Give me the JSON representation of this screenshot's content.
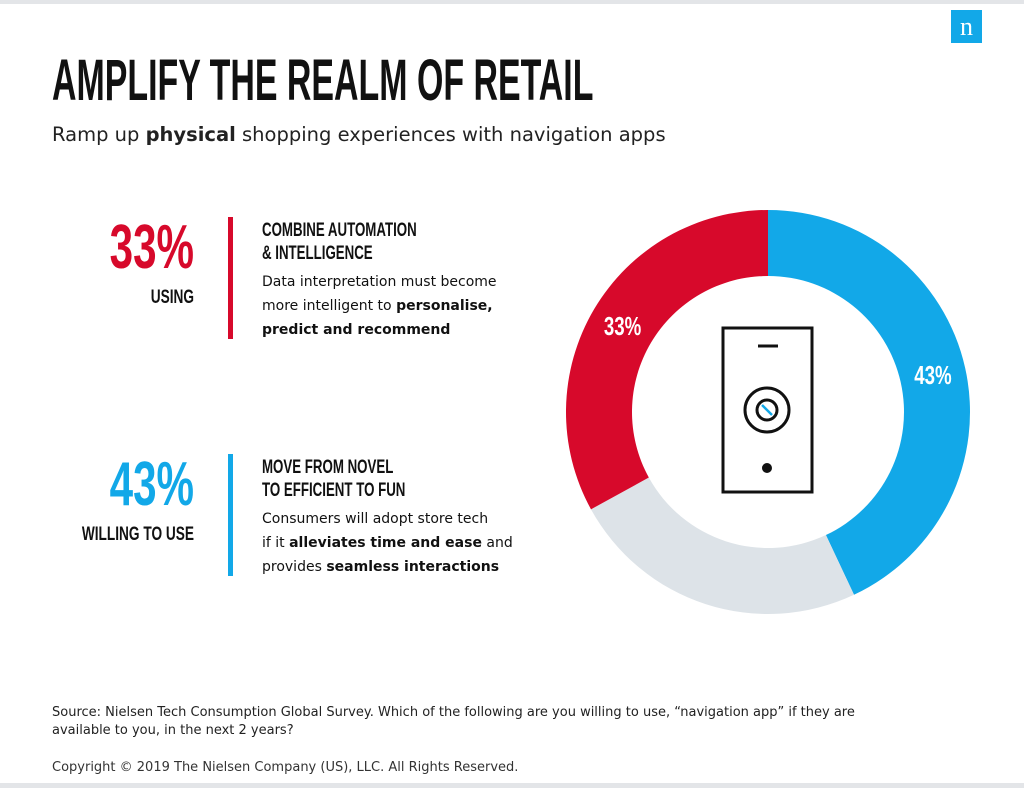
{
  "logo": "n",
  "title": "AMPLIFY THE REALM OF RETAIL",
  "subtitle": [
    {
      "text": "Ramp up "
    },
    {
      "text": "physical",
      "bold": true
    },
    {
      "text": " shopping experiences with navigation apps"
    }
  ],
  "stats": [
    {
      "value": "33%",
      "label": "USING",
      "color": "#d7092b",
      "heading": [
        "COMBINE AUTOMATION",
        "& INTELLIGENCE"
      ],
      "body": [
        [
          {
            "text": "Data interpretation must become"
          }
        ],
        [
          {
            "text": "more intelligent to "
          },
          {
            "text": "personalise,",
            "bold": true
          }
        ],
        [
          {
            "text": "predict and recommend",
            "bold": true
          }
        ]
      ]
    },
    {
      "value": "43%",
      "label": "WILLING TO USE",
      "color": "#12a8e8",
      "heading": [
        "MOVE FROM NOVEL",
        "TO EFFICIENT TO FUN"
      ],
      "body": [
        [
          {
            "text": "Consumers will adopt store tech"
          }
        ],
        [
          {
            "text": "if it "
          },
          {
            "text": "alleviates time and ease",
            "bold": true
          },
          {
            "text": " and"
          }
        ],
        [
          {
            "text": "provides "
          },
          {
            "text": "seamless interactions",
            "bold": true
          }
        ]
      ]
    }
  ],
  "chart_data": {
    "type": "donut",
    "categories": [
      null,
      null,
      null
    ],
    "values": [
      43,
      24,
      33
    ],
    "value_labels": [
      "43%",
      null,
      "33%"
    ],
    "colors": [
      "#12a8e8",
      "#dde3e8",
      "#d7092b"
    ]
  },
  "source": [
    "Source: Nielsen Tech Consumption Global Survey. Which of the following are you willing to use, “navigation app” if they are",
    "available to you, in the next 2 years?"
  ],
  "copyright": "Copyright © 2019 The Nielsen Company (US), LLC. All Rights Reserved."
}
